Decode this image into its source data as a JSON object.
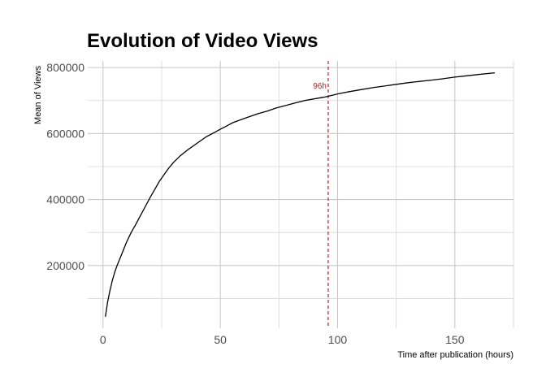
{
  "chart_data": {
    "type": "line",
    "title": "Evolution of Video Views",
    "xlabel": "Time after publication (hours)",
    "ylabel": "Mean of Views",
    "xlim": [
      -6.5,
      175
    ],
    "ylim": [
      10000,
      820000
    ],
    "x_ticks": [
      0,
      50,
      100,
      150
    ],
    "x_tick_labels": [
      "0",
      "50",
      "100",
      "150"
    ],
    "y_ticks": [
      200000,
      400000,
      600000,
      800000
    ],
    "y_tick_labels": [
      "200000",
      "400000",
      "600000",
      "800000"
    ],
    "grid": true,
    "legend": "none",
    "line_color": "#000000",
    "series": [
      {
        "x": [
          1,
          2,
          3,
          4,
          5,
          6,
          8,
          10,
          12,
          14,
          16,
          18,
          20,
          22,
          24,
          26,
          28,
          30,
          33,
          36,
          40,
          44,
          48,
          50,
          52,
          55,
          58,
          62,
          66,
          70,
          74,
          78,
          82,
          86,
          90,
          94,
          96,
          100,
          105,
          110,
          115,
          120,
          125,
          130,
          135,
          140,
          145,
          150,
          155,
          160,
          167
        ],
        "y": [
          45000,
          90000,
          125000,
          155000,
          180000,
          200000,
          235000,
          270000,
          300000,
          325000,
          352000,
          378000,
          405000,
          430000,
          455000,
          475000,
          495000,
          512000,
          533000,
          550000,
          570000,
          590000,
          605000,
          613000,
          620000,
          632000,
          640000,
          650000,
          660000,
          668000,
          678000,
          685000,
          693000,
          700000,
          705000,
          710000,
          713000,
          720000,
          727000,
          733000,
          739000,
          744000,
          749000,
          754000,
          758000,
          762000,
          766000,
          771000,
          775000,
          779000,
          784000
        ]
      }
    ],
    "annotations": [
      {
        "type": "vline",
        "x": 96,
        "color": "#b22222",
        "style": "dashed",
        "label": "96h"
      }
    ]
  }
}
